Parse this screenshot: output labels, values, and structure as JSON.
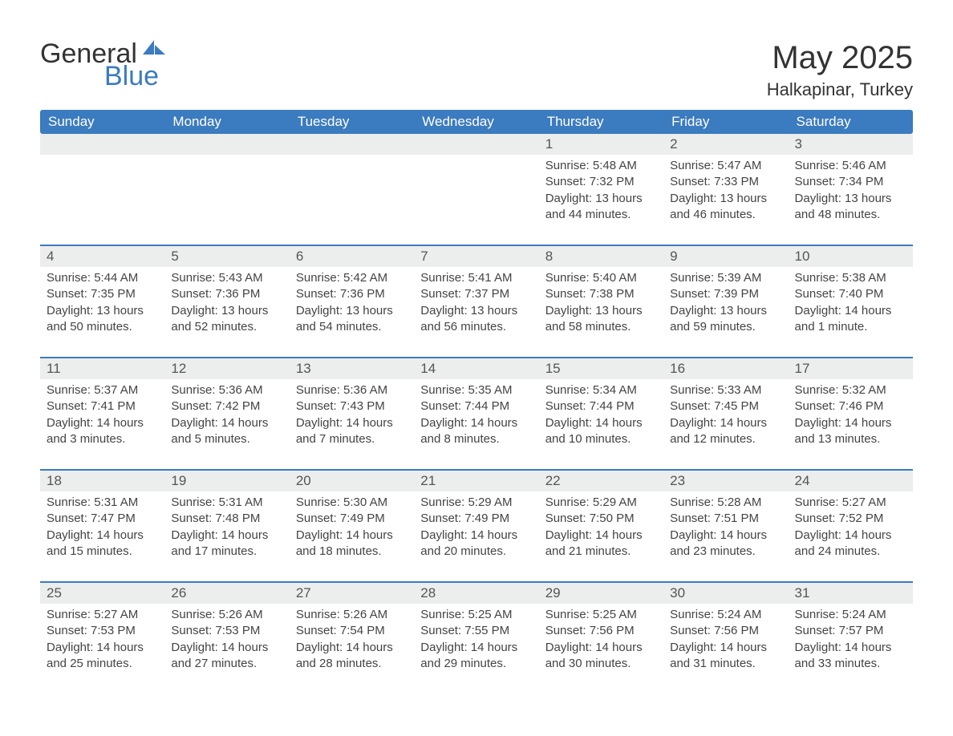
{
  "logo": {
    "word1": "General",
    "word2": "Blue"
  },
  "title": "May 2025",
  "location": "Halkapinar, Turkey",
  "colors": {
    "accent": "#3b7bbf",
    "dow_bg": "#3b7bbf",
    "dow_text": "#ffffff",
    "daynum_bg": "#eceded",
    "text": "#333333",
    "background": "#ffffff"
  },
  "dow": [
    "Sunday",
    "Monday",
    "Tuesday",
    "Wednesday",
    "Thursday",
    "Friday",
    "Saturday"
  ],
  "first_day_index": 4,
  "days": [
    {
      "n": 1,
      "sunrise": "5:48 AM",
      "sunset": "7:32 PM",
      "daylight": "13 hours and 44 minutes."
    },
    {
      "n": 2,
      "sunrise": "5:47 AM",
      "sunset": "7:33 PM",
      "daylight": "13 hours and 46 minutes."
    },
    {
      "n": 3,
      "sunrise": "5:46 AM",
      "sunset": "7:34 PM",
      "daylight": "13 hours and 48 minutes."
    },
    {
      "n": 4,
      "sunrise": "5:44 AM",
      "sunset": "7:35 PM",
      "daylight": "13 hours and 50 minutes."
    },
    {
      "n": 5,
      "sunrise": "5:43 AM",
      "sunset": "7:36 PM",
      "daylight": "13 hours and 52 minutes."
    },
    {
      "n": 6,
      "sunrise": "5:42 AM",
      "sunset": "7:36 PM",
      "daylight": "13 hours and 54 minutes."
    },
    {
      "n": 7,
      "sunrise": "5:41 AM",
      "sunset": "7:37 PM",
      "daylight": "13 hours and 56 minutes."
    },
    {
      "n": 8,
      "sunrise": "5:40 AM",
      "sunset": "7:38 PM",
      "daylight": "13 hours and 58 minutes."
    },
    {
      "n": 9,
      "sunrise": "5:39 AM",
      "sunset": "7:39 PM",
      "daylight": "13 hours and 59 minutes."
    },
    {
      "n": 10,
      "sunrise": "5:38 AM",
      "sunset": "7:40 PM",
      "daylight": "14 hours and 1 minute."
    },
    {
      "n": 11,
      "sunrise": "5:37 AM",
      "sunset": "7:41 PM",
      "daylight": "14 hours and 3 minutes."
    },
    {
      "n": 12,
      "sunrise": "5:36 AM",
      "sunset": "7:42 PM",
      "daylight": "14 hours and 5 minutes."
    },
    {
      "n": 13,
      "sunrise": "5:36 AM",
      "sunset": "7:43 PM",
      "daylight": "14 hours and 7 minutes."
    },
    {
      "n": 14,
      "sunrise": "5:35 AM",
      "sunset": "7:44 PM",
      "daylight": "14 hours and 8 minutes."
    },
    {
      "n": 15,
      "sunrise": "5:34 AM",
      "sunset": "7:44 PM",
      "daylight": "14 hours and 10 minutes."
    },
    {
      "n": 16,
      "sunrise": "5:33 AM",
      "sunset": "7:45 PM",
      "daylight": "14 hours and 12 minutes."
    },
    {
      "n": 17,
      "sunrise": "5:32 AM",
      "sunset": "7:46 PM",
      "daylight": "14 hours and 13 minutes."
    },
    {
      "n": 18,
      "sunrise": "5:31 AM",
      "sunset": "7:47 PM",
      "daylight": "14 hours and 15 minutes."
    },
    {
      "n": 19,
      "sunrise": "5:31 AM",
      "sunset": "7:48 PM",
      "daylight": "14 hours and 17 minutes."
    },
    {
      "n": 20,
      "sunrise": "5:30 AM",
      "sunset": "7:49 PM",
      "daylight": "14 hours and 18 minutes."
    },
    {
      "n": 21,
      "sunrise": "5:29 AM",
      "sunset": "7:49 PM",
      "daylight": "14 hours and 20 minutes."
    },
    {
      "n": 22,
      "sunrise": "5:29 AM",
      "sunset": "7:50 PM",
      "daylight": "14 hours and 21 minutes."
    },
    {
      "n": 23,
      "sunrise": "5:28 AM",
      "sunset": "7:51 PM",
      "daylight": "14 hours and 23 minutes."
    },
    {
      "n": 24,
      "sunrise": "5:27 AM",
      "sunset": "7:52 PM",
      "daylight": "14 hours and 24 minutes."
    },
    {
      "n": 25,
      "sunrise": "5:27 AM",
      "sunset": "7:53 PM",
      "daylight": "14 hours and 25 minutes."
    },
    {
      "n": 26,
      "sunrise": "5:26 AM",
      "sunset": "7:53 PM",
      "daylight": "14 hours and 27 minutes."
    },
    {
      "n": 27,
      "sunrise": "5:26 AM",
      "sunset": "7:54 PM",
      "daylight": "14 hours and 28 minutes."
    },
    {
      "n": 28,
      "sunrise": "5:25 AM",
      "sunset": "7:55 PM",
      "daylight": "14 hours and 29 minutes."
    },
    {
      "n": 29,
      "sunrise": "5:25 AM",
      "sunset": "7:56 PM",
      "daylight": "14 hours and 30 minutes."
    },
    {
      "n": 30,
      "sunrise": "5:24 AM",
      "sunset": "7:56 PM",
      "daylight": "14 hours and 31 minutes."
    },
    {
      "n": 31,
      "sunrise": "5:24 AM",
      "sunset": "7:57 PM",
      "daylight": "14 hours and 33 minutes."
    }
  ],
  "labels": {
    "sunrise": "Sunrise:",
    "sunset": "Sunset:",
    "daylight": "Daylight:"
  }
}
